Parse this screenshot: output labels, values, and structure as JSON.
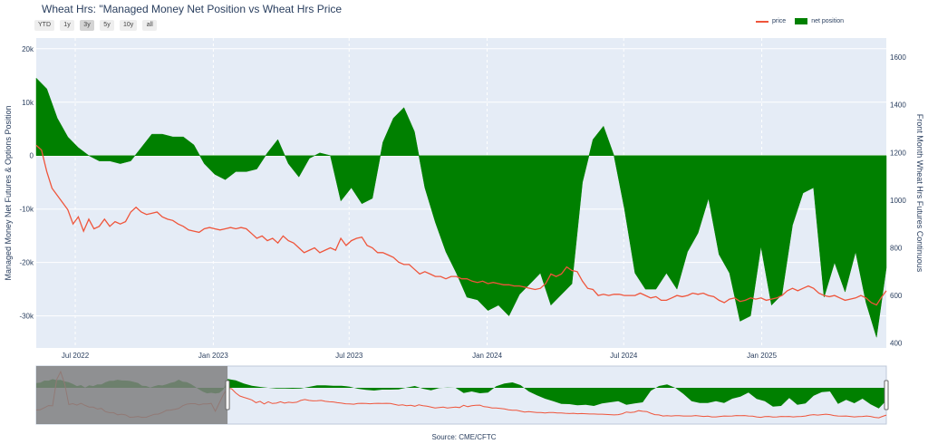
{
  "title": "Wheat Hrs: \"Managed Money Net Position vs Wheat Hrs Price",
  "range_selector": {
    "buttons": [
      "YTD",
      "1y",
      "3y",
      "5y",
      "10y",
      "all"
    ],
    "active": "3y"
  },
  "legend": {
    "price_label": "price",
    "net_label": "net position"
  },
  "source": "Source: CME/CFTC",
  "colors": {
    "price": "#ef553b",
    "net": "#008000",
    "plot_bg": "#e5ecf6",
    "grid": "#ffffff",
    "text": "#2a3f5f",
    "slider_mask": "#808080",
    "slider_net_dark": "#004d00"
  },
  "chart_data": {
    "type": "area",
    "xlabel": "",
    "ylabel_left": "Managed Money Net Futures & Options Position",
    "ylabel_right": "Front Month Wheat Hrs Futures Continuous",
    "y_left": {
      "range": [
        -36000,
        22000
      ],
      "ticks": [
        20000,
        10000,
        0,
        -10000,
        -20000,
        -30000
      ],
      "tick_labels": [
        "20k",
        "10k",
        "0",
        "-10k",
        "-20k",
        "-30k"
      ]
    },
    "y_right": {
      "range": [
        380,
        1680
      ],
      "ticks": [
        1600,
        1400,
        1200,
        1000,
        800,
        600,
        400
      ],
      "tick_labels": [
        "1600",
        "1400",
        "1200",
        "1000",
        "800",
        "600",
        "400"
      ]
    },
    "x_range": [
      "2022-05-10",
      "2025-06-16"
    ],
    "x_ticks": [
      "2022-07-01",
      "2023-01-01",
      "2023-07-01",
      "2024-01-01",
      "2024-07-01",
      "2025-01-01"
    ],
    "x_tick_labels": [
      "Jul 2022",
      "Jan 2023",
      "Jul 2023",
      "Jan 2024",
      "Jul 2024",
      "Jan 2025"
    ],
    "series": [
      {
        "name": "net position",
        "points": [
          [
            "2022-05-10",
            14500
          ],
          [
            "2022-05-24",
            12500
          ],
          [
            "2022-06-07",
            7000
          ],
          [
            "2022-06-21",
            3500
          ],
          [
            "2022-07-05",
            1500
          ],
          [
            "2022-07-19",
            0
          ],
          [
            "2022-08-02",
            -1000
          ],
          [
            "2022-08-16",
            -1000
          ],
          [
            "2022-08-30",
            -1500
          ],
          [
            "2022-09-13",
            -1000
          ],
          [
            "2022-09-27",
            1500
          ],
          [
            "2022-10-11",
            4000
          ],
          [
            "2022-10-25",
            4000
          ],
          [
            "2022-11-08",
            3500
          ],
          [
            "2022-11-22",
            3500
          ],
          [
            "2022-12-06",
            2000
          ],
          [
            "2022-12-20",
            -1500
          ],
          [
            "2023-01-03",
            -3500
          ],
          [
            "2023-01-17",
            -4500
          ],
          [
            "2023-01-31",
            -3000
          ],
          [
            "2023-02-14",
            -3000
          ],
          [
            "2023-02-28",
            -2500
          ],
          [
            "2023-03-14",
            500
          ],
          [
            "2023-03-28",
            3000
          ],
          [
            "2023-04-11",
            -1500
          ],
          [
            "2023-04-25",
            -4000
          ],
          [
            "2023-05-09",
            -500
          ],
          [
            "2023-05-23",
            500
          ],
          [
            "2023-06-06",
            0
          ],
          [
            "2023-06-20",
            -8500
          ],
          [
            "2023-07-04",
            -6000
          ],
          [
            "2023-07-18",
            -9000
          ],
          [
            "2023-08-01",
            -8000
          ],
          [
            "2023-08-15",
            2500
          ],
          [
            "2023-08-29",
            7000
          ],
          [
            "2023-09-12",
            9000
          ],
          [
            "2023-09-26",
            4500
          ],
          [
            "2023-10-10",
            -6000
          ],
          [
            "2023-10-24",
            -12500
          ],
          [
            "2023-11-07",
            -18000
          ],
          [
            "2023-11-21",
            -22000
          ],
          [
            "2023-12-05",
            -26500
          ],
          [
            "2023-12-19",
            -27000
          ],
          [
            "2024-01-02",
            -29000
          ],
          [
            "2024-01-16",
            -28000
          ],
          [
            "2024-01-30",
            -30000
          ],
          [
            "2024-02-13",
            -26000
          ],
          [
            "2024-02-27",
            -24000
          ],
          [
            "2024-03-12",
            -22000
          ],
          [
            "2024-03-26",
            -28000
          ],
          [
            "2024-04-09",
            -26000
          ],
          [
            "2024-04-23",
            -24000
          ],
          [
            "2024-05-07",
            -5000
          ],
          [
            "2024-05-21",
            3000
          ],
          [
            "2024-06-04",
            5500
          ],
          [
            "2024-06-18",
            0
          ],
          [
            "2024-07-02",
            -10000
          ],
          [
            "2024-07-16",
            -22000
          ],
          [
            "2024-07-30",
            -25000
          ],
          [
            "2024-08-13",
            -25000
          ],
          [
            "2024-08-27",
            -22000
          ],
          [
            "2024-09-10",
            -25000
          ],
          [
            "2024-09-24",
            -18000
          ],
          [
            "2024-10-08",
            -14500
          ],
          [
            "2024-10-22",
            -8000
          ],
          [
            "2024-11-05",
            -18500
          ],
          [
            "2024-11-19",
            -22000
          ],
          [
            "2024-12-03",
            -31000
          ],
          [
            "2024-12-17",
            -30000
          ],
          [
            "2024-12-31",
            -17000
          ],
          [
            "2025-01-14",
            -28000
          ],
          [
            "2025-01-28",
            -26000
          ],
          [
            "2025-02-11",
            -13000
          ],
          [
            "2025-02-25",
            -7000
          ],
          [
            "2025-03-11",
            -6000
          ],
          [
            "2025-03-25",
            -26500
          ],
          [
            "2025-04-08",
            -20000
          ],
          [
            "2025-04-22",
            -25500
          ],
          [
            "2025-05-06",
            -18000
          ],
          [
            "2025-05-20",
            -27500
          ],
          [
            "2025-06-03",
            -34000
          ],
          [
            "2025-06-16",
            -21000
          ]
        ]
      },
      {
        "name": "price",
        "points": [
          [
            "2022-05-10",
            1230
          ],
          [
            "2022-05-17",
            1210
          ],
          [
            "2022-05-24",
            1120
          ],
          [
            "2022-05-31",
            1050
          ],
          [
            "2022-06-07",
            1020
          ],
          [
            "2022-06-14",
            990
          ],
          [
            "2022-06-21",
            960
          ],
          [
            "2022-06-28",
            900
          ],
          [
            "2022-07-05",
            930
          ],
          [
            "2022-07-12",
            870
          ],
          [
            "2022-07-19",
            920
          ],
          [
            "2022-07-26",
            880
          ],
          [
            "2022-08-02",
            890
          ],
          [
            "2022-08-09",
            920
          ],
          [
            "2022-08-16",
            890
          ],
          [
            "2022-08-23",
            910
          ],
          [
            "2022-08-30",
            900
          ],
          [
            "2022-09-06",
            910
          ],
          [
            "2022-09-13",
            950
          ],
          [
            "2022-09-20",
            970
          ],
          [
            "2022-09-27",
            950
          ],
          [
            "2022-10-04",
            940
          ],
          [
            "2022-10-11",
            945
          ],
          [
            "2022-10-18",
            950
          ],
          [
            "2022-10-25",
            930
          ],
          [
            "2022-11-01",
            920
          ],
          [
            "2022-11-08",
            915
          ],
          [
            "2022-11-15",
            900
          ],
          [
            "2022-11-22",
            890
          ],
          [
            "2022-11-29",
            875
          ],
          [
            "2022-12-06",
            870
          ],
          [
            "2022-12-13",
            865
          ],
          [
            "2022-12-20",
            880
          ],
          [
            "2022-12-27",
            885
          ],
          [
            "2023-01-03",
            880
          ],
          [
            "2023-01-10",
            875
          ],
          [
            "2023-01-17",
            880
          ],
          [
            "2023-01-24",
            885
          ],
          [
            "2023-01-31",
            880
          ],
          [
            "2023-02-07",
            885
          ],
          [
            "2023-02-14",
            880
          ],
          [
            "2023-02-21",
            860
          ],
          [
            "2023-02-28",
            840
          ],
          [
            "2023-03-07",
            850
          ],
          [
            "2023-03-14",
            830
          ],
          [
            "2023-03-21",
            840
          ],
          [
            "2023-03-28",
            820
          ],
          [
            "2023-04-04",
            850
          ],
          [
            "2023-04-11",
            830
          ],
          [
            "2023-04-18",
            820
          ],
          [
            "2023-04-25",
            800
          ],
          [
            "2023-05-02",
            780
          ],
          [
            "2023-05-09",
            790
          ],
          [
            "2023-05-16",
            800
          ],
          [
            "2023-05-23",
            780
          ],
          [
            "2023-05-30",
            790
          ],
          [
            "2023-06-06",
            800
          ],
          [
            "2023-06-13",
            790
          ],
          [
            "2023-06-20",
            840
          ],
          [
            "2023-06-27",
            810
          ],
          [
            "2023-07-04",
            830
          ],
          [
            "2023-07-11",
            840
          ],
          [
            "2023-07-18",
            845
          ],
          [
            "2023-07-25",
            810
          ],
          [
            "2023-08-01",
            800
          ],
          [
            "2023-08-08",
            780
          ],
          [
            "2023-08-15",
            780
          ],
          [
            "2023-08-22",
            770
          ],
          [
            "2023-08-29",
            760
          ],
          [
            "2023-09-05",
            740
          ],
          [
            "2023-09-12",
            730
          ],
          [
            "2023-09-19",
            730
          ],
          [
            "2023-09-26",
            710
          ],
          [
            "2023-10-03",
            690
          ],
          [
            "2023-10-10",
            700
          ],
          [
            "2023-10-17",
            690
          ],
          [
            "2023-10-24",
            680
          ],
          [
            "2023-10-31",
            680
          ],
          [
            "2023-11-07",
            670
          ],
          [
            "2023-11-14",
            680
          ],
          [
            "2023-11-21",
            680
          ],
          [
            "2023-11-28",
            670
          ],
          [
            "2023-12-05",
            670
          ],
          [
            "2023-12-12",
            660
          ],
          [
            "2023-12-19",
            655
          ],
          [
            "2023-12-26",
            660
          ],
          [
            "2024-01-02",
            650
          ],
          [
            "2024-01-09",
            655
          ],
          [
            "2024-01-16",
            650
          ],
          [
            "2024-01-23",
            645
          ],
          [
            "2024-01-30",
            645
          ],
          [
            "2024-02-06",
            640
          ],
          [
            "2024-02-13",
            640
          ],
          [
            "2024-02-20",
            635
          ],
          [
            "2024-02-27",
            630
          ],
          [
            "2024-03-05",
            625
          ],
          [
            "2024-03-12",
            630
          ],
          [
            "2024-03-19",
            650
          ],
          [
            "2024-03-26",
            690
          ],
          [
            "2024-04-02",
            680
          ],
          [
            "2024-04-09",
            690
          ],
          [
            "2024-04-16",
            720
          ],
          [
            "2024-04-23",
            705
          ],
          [
            "2024-04-30",
            700
          ],
          [
            "2024-05-07",
            660
          ],
          [
            "2024-05-14",
            630
          ],
          [
            "2024-05-21",
            625
          ],
          [
            "2024-05-28",
            600
          ],
          [
            "2024-06-04",
            605
          ],
          [
            "2024-06-11",
            600
          ],
          [
            "2024-06-18",
            605
          ],
          [
            "2024-06-25",
            605
          ],
          [
            "2024-07-02",
            600
          ],
          [
            "2024-07-09",
            600
          ],
          [
            "2024-07-16",
            600
          ],
          [
            "2024-07-23",
            610
          ],
          [
            "2024-07-30",
            600
          ],
          [
            "2024-08-06",
            590
          ],
          [
            "2024-08-13",
            595
          ],
          [
            "2024-08-20",
            580
          ],
          [
            "2024-08-27",
            580
          ],
          [
            "2024-09-03",
            590
          ],
          [
            "2024-09-10",
            600
          ],
          [
            "2024-09-17",
            595
          ],
          [
            "2024-09-24",
            600
          ],
          [
            "2024-10-01",
            610
          ],
          [
            "2024-10-08",
            605
          ],
          [
            "2024-10-15",
            610
          ],
          [
            "2024-10-22",
            600
          ],
          [
            "2024-10-29",
            595
          ],
          [
            "2024-11-05",
            580
          ],
          [
            "2024-11-12",
            570
          ],
          [
            "2024-11-19",
            585
          ],
          [
            "2024-11-26",
            590
          ],
          [
            "2024-12-03",
            575
          ],
          [
            "2024-12-10",
            580
          ],
          [
            "2024-12-17",
            590
          ],
          [
            "2024-12-24",
            585
          ],
          [
            "2024-12-31",
            590
          ],
          [
            "2025-01-07",
            580
          ],
          [
            "2025-01-14",
            585
          ],
          [
            "2025-01-21",
            590
          ],
          [
            "2025-01-28",
            600
          ],
          [
            "2025-02-04",
            620
          ],
          [
            "2025-02-11",
            630
          ],
          [
            "2025-02-18",
            620
          ],
          [
            "2025-02-25",
            630
          ],
          [
            "2025-03-04",
            640
          ],
          [
            "2025-03-11",
            630
          ],
          [
            "2025-03-18",
            610
          ],
          [
            "2025-03-25",
            600
          ],
          [
            "2025-04-01",
            595
          ],
          [
            "2025-04-08",
            600
          ],
          [
            "2025-04-15",
            590
          ],
          [
            "2025-04-22",
            580
          ],
          [
            "2025-04-29",
            585
          ],
          [
            "2025-05-06",
            590
          ],
          [
            "2025-05-13",
            600
          ],
          [
            "2025-05-20",
            590
          ],
          [
            "2025-05-27",
            570
          ],
          [
            "2025-06-03",
            560
          ],
          [
            "2025-06-09",
            590
          ],
          [
            "2025-06-16",
            620
          ]
        ]
      }
    ],
    "grid": true,
    "legend_position": "top-right",
    "range_slider": true
  }
}
